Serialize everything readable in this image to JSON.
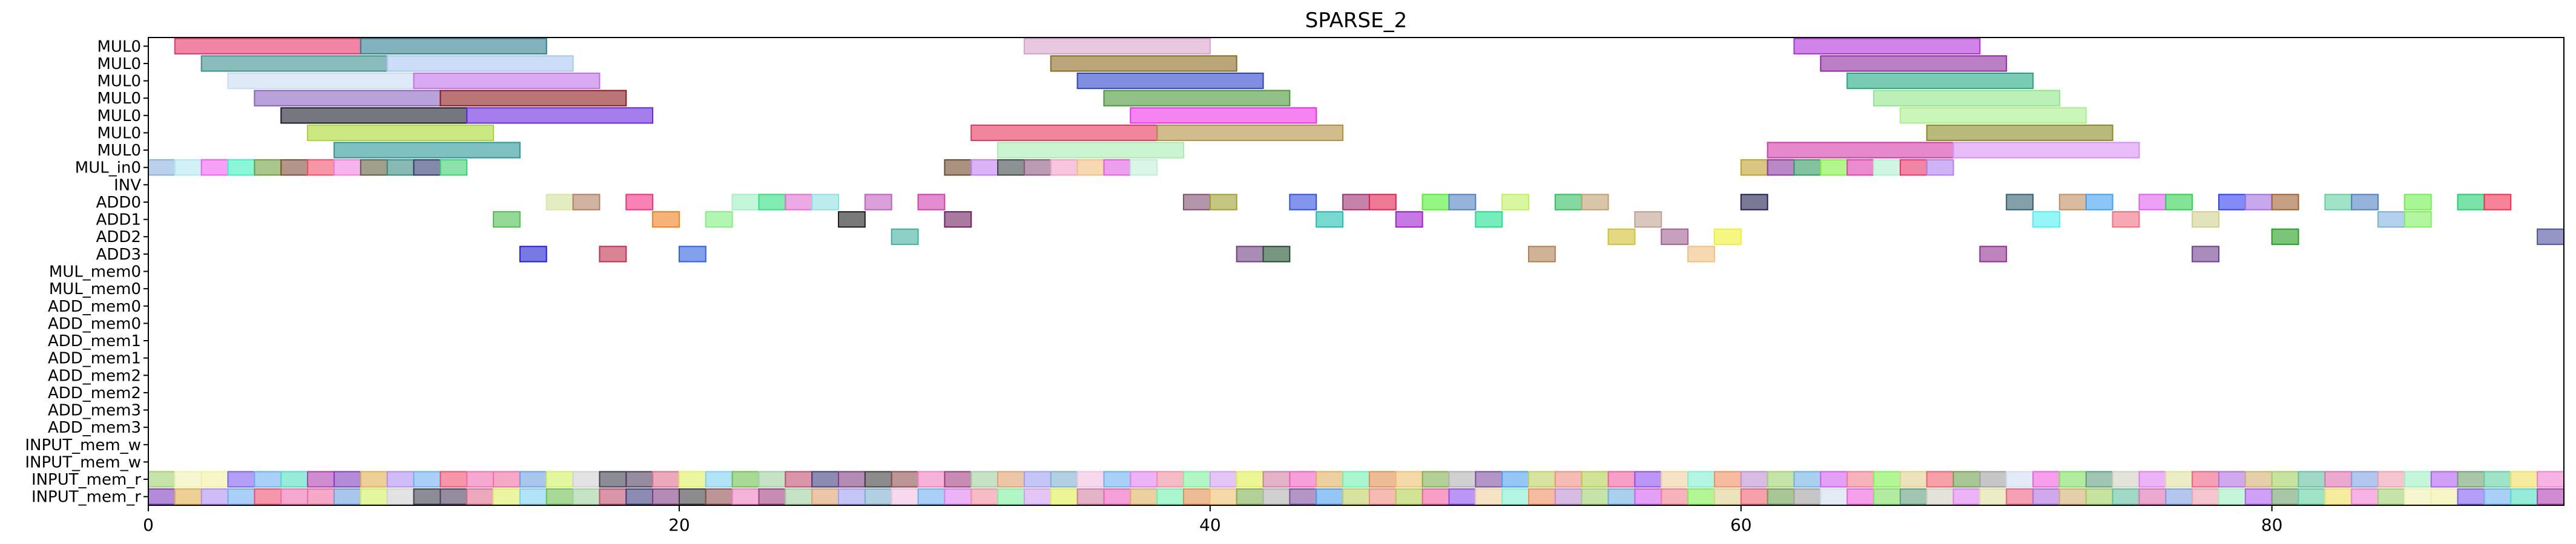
{
  "chart_data": {
    "type": "gantt",
    "title": "SPARSE_2",
    "xlim": [
      0,
      91
    ],
    "x_ticks": [
      0,
      20,
      40,
      60,
      80
    ],
    "rows": [
      "MUL0",
      "MUL0",
      "MUL0",
      "MUL0",
      "MUL0",
      "MUL0",
      "MUL0",
      "MUL_in0",
      "INV",
      "ADD0",
      "ADD1",
      "ADD2",
      "ADD3",
      "MUL_mem0",
      "MUL_mem0",
      "ADD_mem0",
      "ADD_mem0",
      "ADD_mem1",
      "ADD_mem1",
      "ADD_mem2",
      "ADD_mem2",
      "ADD_mem3",
      "ADD_mem3",
      "INPUT_mem_w",
      "INPUT_mem_w",
      "INPUT_mem_r",
      "INPUT_mem_r"
    ],
    "tasks": [
      {
        "row": 0,
        "start": 1,
        "end": 8,
        "color": "#e8336b"
      },
      {
        "row": 0,
        "start": 8,
        "end": 15,
        "color": "#2f7f8f"
      },
      {
        "row": 0,
        "start": 33,
        "end": 40,
        "color": "#d9a1cc"
      },
      {
        "row": 0,
        "start": 62,
        "end": 69,
        "color": "#b030d8"
      },
      {
        "row": 1,
        "start": 2,
        "end": 9,
        "color": "#3e8f8f"
      },
      {
        "row": 1,
        "start": 9,
        "end": 16,
        "color": "#a9c6f2"
      },
      {
        "row": 1,
        "start": 34,
        "end": 41,
        "color": "#8a6a20"
      },
      {
        "row": 1,
        "start": 63,
        "end": 70,
        "color": "#8e2aa0"
      },
      {
        "row": 2,
        "start": 3,
        "end": 10,
        "color": "#c9dcf4"
      },
      {
        "row": 2,
        "start": 10,
        "end": 17,
        "color": "#c070e8"
      },
      {
        "row": 2,
        "start": 35,
        "end": 42,
        "color": "#2a43c8"
      },
      {
        "row": 2,
        "start": 64,
        "end": 71,
        "color": "#20a880"
      },
      {
        "row": 3,
        "start": 4,
        "end": 11,
        "color": "#8b62c0"
      },
      {
        "row": 3,
        "start": 11,
        "end": 18,
        "color": "#8c1a1a"
      },
      {
        "row": 3,
        "start": 36,
        "end": 43,
        "color": "#4a9838"
      },
      {
        "row": 3,
        "start": 65,
        "end": 72,
        "color": "#8ee88a"
      },
      {
        "row": 4,
        "start": 5,
        "end": 12,
        "color": "#1a1a2a"
      },
      {
        "row": 4,
        "start": 12,
        "end": 19,
        "color": "#6a28e0"
      },
      {
        "row": 4,
        "start": 37,
        "end": 44,
        "color": "#ee30e8"
      },
      {
        "row": 4,
        "start": 66,
        "end": 73,
        "color": "#a8f08a"
      },
      {
        "row": 5,
        "start": 6,
        "end": 13,
        "color": "#a8d830"
      },
      {
        "row": 5,
        "start": 31,
        "end": 38,
        "color": "#e8335c"
      },
      {
        "row": 5,
        "start": 38,
        "end": 45,
        "color": "#b09040"
      },
      {
        "row": 5,
        "start": 67,
        "end": 74,
        "color": "#8a8a20"
      },
      {
        "row": 6,
        "start": 7,
        "end": 14,
        "color": "#2a9898"
      },
      {
        "row": 6,
        "start": 32,
        "end": 39,
        "color": "#a8ecb0"
      },
      {
        "row": 6,
        "start": 61,
        "end": 68,
        "color": "#d23aa8"
      },
      {
        "row": 6,
        "start": 68,
        "end": 75,
        "color": "#d890f2"
      },
      {
        "row": 7,
        "start": 0,
        "end": 1,
        "color": "#8ab2e0"
      },
      {
        "row": 7,
        "start": 1,
        "end": 2,
        "color": "#b2e8f2"
      },
      {
        "row": 7,
        "start": 2,
        "end": 3,
        "color": "#f060f0"
      },
      {
        "row": 7,
        "start": 3,
        "end": 4,
        "color": "#40f0c0"
      },
      {
        "row": 7,
        "start": 4,
        "end": 5,
        "color": "#70a040"
      },
      {
        "row": 7,
        "start": 5,
        "end": 6,
        "color": "#80503a"
      },
      {
        "row": 7,
        "start": 6,
        "end": 7,
        "color": "#f0506a"
      },
      {
        "row": 7,
        "start": 7,
        "end": 8,
        "color": "#f080e0"
      },
      {
        "row": 7,
        "start": 8,
        "end": 9,
        "color": "#606040"
      },
      {
        "row": 7,
        "start": 9,
        "end": 10,
        "color": "#3a8a80"
      },
      {
        "row": 7,
        "start": 10,
        "end": 11,
        "color": "#303a70"
      },
      {
        "row": 7,
        "start": 11,
        "end": 12,
        "color": "#40d070"
      },
      {
        "row": 7,
        "start": 30,
        "end": 31,
        "color": "#704a2a"
      },
      {
        "row": 7,
        "start": 31,
        "end": 32,
        "color": "#c080f0"
      },
      {
        "row": 7,
        "start": 32,
        "end": 33,
        "color": "#404a4a"
      },
      {
        "row": 7,
        "start": 33,
        "end": 34,
        "color": "#8a5a80"
      },
      {
        "row": 7,
        "start": 34,
        "end": 35,
        "color": "#f0a0c8"
      },
      {
        "row": 7,
        "start": 35,
        "end": 36,
        "color": "#f0c080"
      },
      {
        "row": 7,
        "start": 36,
        "end": 37,
        "color": "#e060e0"
      },
      {
        "row": 7,
        "start": 37,
        "end": 38,
        "color": "#c0f0d8"
      },
      {
        "row": 7,
        "start": 60,
        "end": 61,
        "color": "#c0a030"
      },
      {
        "row": 7,
        "start": 61,
        "end": 62,
        "color": "#8a3aa0"
      },
      {
        "row": 7,
        "start": 62,
        "end": 63,
        "color": "#309a60"
      },
      {
        "row": 7,
        "start": 63,
        "end": 64,
        "color": "#80f040"
      },
      {
        "row": 7,
        "start": 64,
        "end": 65,
        "color": "#e040b0"
      },
      {
        "row": 7,
        "start": 65,
        "end": 66,
        "color": "#b0f0d0"
      },
      {
        "row": 7,
        "start": 66,
        "end": 67,
        "color": "#e8336b"
      },
      {
        "row": 7,
        "start": 67,
        "end": 68,
        "color": "#b080f0"
      },
      {
        "row": 9,
        "start": 15,
        "end": 16,
        "color": "#f0f0f0"
      },
      {
        "row": 9,
        "start": 18,
        "end": 19,
        "color": "#f03080"
      },
      {
        "row": 9,
        "start": 22,
        "end": 23,
        "color": "#a0f0c0"
      },
      {
        "row": 9,
        "start": 23,
        "end": 24,
        "color": "#30e080"
      },
      {
        "row": 9,
        "start": 24,
        "end": 25,
        "color": "#e070d0"
      },
      {
        "row": 9,
        "start": 25,
        "end": 26,
        "color": "#90e0e0"
      },
      {
        "row": 9,
        "start": 27,
        "end": 28,
        "color": "#c060c0"
      },
      {
        "row": 9,
        "start": 29,
        "end": 30,
        "color": "#d040b0"
      },
      {
        "row": 9,
        "start": 15,
        "end": 16,
        "color": "#d8e8a0"
      },
      {
        "row": 9,
        "start": 16,
        "end": 17,
        "color": "#b08060"
      },
      {
        "row": 9,
        "start": 39,
        "end": 40,
        "color": "#805070"
      },
      {
        "row": 9,
        "start": 40,
        "end": 41,
        "color": "#a0a030"
      },
      {
        "row": 9,
        "start": 43,
        "end": 44,
        "color": "#3050e0"
      },
      {
        "row": 9,
        "start": 45,
        "end": 46,
        "color": "#a03070"
      },
      {
        "row": 9,
        "start": 46,
        "end": 47,
        "color": "#e02050"
      },
      {
        "row": 9,
        "start": 48,
        "end": 49,
        "color": "#50f030"
      },
      {
        "row": 9,
        "start": 49,
        "end": 50,
        "color": "#5080c0"
      },
      {
        "row": 9,
        "start": 51,
        "end": 52,
        "color": "#c0f060"
      },
      {
        "row": 9,
        "start": 53,
        "end": 54,
        "color": "#30c060"
      },
      {
        "row": 9,
        "start": 54,
        "end": 55,
        "color": "#c0a070"
      },
      {
        "row": 9,
        "start": 60,
        "end": 61,
        "color": "#202050"
      },
      {
        "row": 9,
        "start": 70,
        "end": 71,
        "color": "#306070"
      },
      {
        "row": 9,
        "start": 72,
        "end": 73,
        "color": "#c09060"
      },
      {
        "row": 9,
        "start": 73,
        "end": 74,
        "color": "#40a0f0"
      },
      {
        "row": 9,
        "start": 75,
        "end": 76,
        "color": "#e060f0"
      },
      {
        "row": 9,
        "start": 76,
        "end": 77,
        "color": "#30d050"
      },
      {
        "row": 9,
        "start": 78,
        "end": 79,
        "color": "#3040f0"
      },
      {
        "row": 9,
        "start": 79,
        "end": 80,
        "color": "#a070e0"
      },
      {
        "row": 9,
        "start": 80,
        "end": 81,
        "color": "#a06030"
      },
      {
        "row": 9,
        "start": 82,
        "end": 83,
        "color": "#60d0a0"
      },
      {
        "row": 9,
        "start": 83,
        "end": 84,
        "color": "#5080c0"
      },
      {
        "row": 9,
        "start": 85,
        "end": 86,
        "color": "#70f050"
      },
      {
        "row": 9,
        "start": 87,
        "end": 88,
        "color": "#20d070"
      },
      {
        "row": 9,
        "start": 88,
        "end": 89,
        "color": "#f03050"
      },
      {
        "row": 10,
        "start": 13,
        "end": 14,
        "color": "#50c050"
      },
      {
        "row": 10,
        "start": 19,
        "end": 20,
        "color": "#f08020"
      },
      {
        "row": 10,
        "start": 21,
        "end": 22,
        "color": "#80f080"
      },
      {
        "row": 10,
        "start": 26,
        "end": 27,
        "color": "#202020"
      },
      {
        "row": 10,
        "start": 30,
        "end": 31,
        "color": "#702060"
      },
      {
        "row": 10,
        "start": 44,
        "end": 45,
        "color": "#20c0b0"
      },
      {
        "row": 10,
        "start": 47,
        "end": 48,
        "color": "#a020d0"
      },
      {
        "row": 10,
        "start": 50,
        "end": 51,
        "color": "#20e090"
      },
      {
        "row": 10,
        "start": 56,
        "end": 57,
        "color": "#c0a090"
      },
      {
        "row": 10,
        "start": 71,
        "end": 72,
        "color": "#50f0f0"
      },
      {
        "row": 10,
        "start": 74,
        "end": 75,
        "color": "#f07080"
      },
      {
        "row": 10,
        "start": 77,
        "end": 78,
        "color": "#d0d090"
      },
      {
        "row": 10,
        "start": 84,
        "end": 85,
        "color": "#80b0e0"
      },
      {
        "row": 10,
        "start": 85,
        "end": 86,
        "color": "#80f060"
      },
      {
        "row": 11,
        "start": 28,
        "end": 29,
        "color": "#40b0a0"
      },
      {
        "row": 11,
        "start": 55,
        "end": 56,
        "color": "#d0c030"
      },
      {
        "row": 11,
        "start": 57,
        "end": 58,
        "color": "#a06090"
      },
      {
        "row": 11,
        "start": 59,
        "end": 60,
        "color": "#f0f030"
      },
      {
        "row": 11,
        "start": 80,
        "end": 81,
        "color": "#20a020"
      },
      {
        "row": 11,
        "start": 90,
        "end": 91,
        "color": "#5050a0"
      },
      {
        "row": 12,
        "start": 14,
        "end": 15,
        "color": "#2020d0"
      },
      {
        "row": 12,
        "start": 17,
        "end": 18,
        "color": "#c03050"
      },
      {
        "row": 12,
        "start": 20,
        "end": 21,
        "color": "#3060e0"
      },
      {
        "row": 12,
        "start": 41,
        "end": 42,
        "color": "#704080"
      },
      {
        "row": 12,
        "start": 42,
        "end": 43,
        "color": "#205030"
      },
      {
        "row": 12,
        "start": 52,
        "end": 53,
        "color": "#b08050"
      },
      {
        "row": 12,
        "start": 58,
        "end": 59,
        "color": "#f0c080"
      },
      {
        "row": 12,
        "start": 69,
        "end": 70,
        "color": "#903090"
      },
      {
        "row": 12,
        "start": 77,
        "end": 78,
        "color": "#704090"
      }
    ],
    "input_palette": [
      "#a0d070",
      "#f0f0b0",
      "#f0f0a0",
      "#8060f0",
      "#70b0f0",
      "#50e0c0",
      "#b040b0",
      "#8040c0",
      "#e0b050",
      "#b090f0",
      "#70b0f0",
      "#f05070",
      "#f070b0",
      "#f070a0",
      "#70a0e0",
      "#d0f060",
      "#d0d0d0",
      "#404050",
      "#504060",
      "#e07090",
      "#e0f060",
      "#80d0f0",
      "#70c050",
      "#a0d0a0",
      "#c05070",
      "#404080",
      "#804080",
      "#404040",
      "#905050",
      "#f080c0",
      "#a04080",
      "#a0d0a0",
      "#e0a070",
      "#a0a0f0",
      "#80b0d0",
      "#f0c0e0",
      "#70b0f0",
      "#e080f0",
      "#f090a0",
      "#80f0a0",
      "#d0a0f0",
      "#e0f050",
      "#d080a0",
      "#f060c0",
      "#e0b060",
      "#70f0b0",
      "#e09050",
      "#f0c070",
      "#80b050",
      "#b0b0b0",
      "#8050a0",
      "#50a0f0",
      "#c0d060",
      "#f09080",
      "#b0d050",
      "#f060a0",
      "#9050f0",
      "#f0d0a0",
      "#80f0d0",
      "#f09060",
      "#c090d0",
      "#a0d070",
      "#70b0e0",
      "#d060f0",
      "#f08090",
      "#80f050",
      "#e0d090",
      "#f06070",
      "#70a050",
      "#a0a0a0",
      "#d0e0f0",
      "#f060e0",
      "#80e060",
      "#60a080",
      "#d0d0c0",
      "#e080f0",
      "#e0e0a0",
      "#f06080",
      "#b070e0",
      "#d0b070",
      "#a0d060",
      "#60c0a0",
      "#e070b0",
      "#80a0e0",
      "#f0a0b0",
      "#a0f0c0",
      "#b060f0",
      "#70a070",
      "#60d0a0",
      "#f0e060",
      "#f080d0"
    ]
  }
}
